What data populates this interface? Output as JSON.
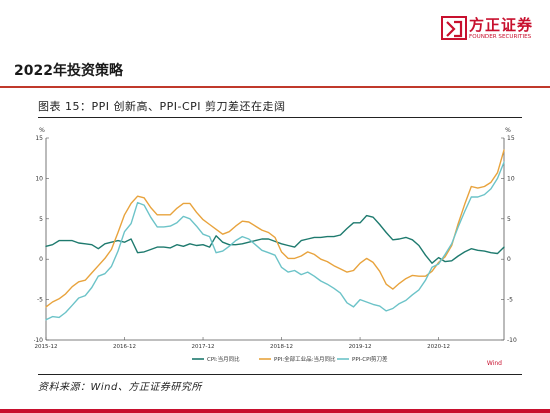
{
  "header": {
    "brand_name": "方正证券",
    "brand_sub": "FOUNDER SECURITIES",
    "section_title": "2022年投资策略"
  },
  "figure": {
    "caption": "图表 15：PPI 创新高、PPI-CPI 剪刀差还在走阔",
    "source": "资料来源：Wind、方正证券研究所"
  },
  "colors": {
    "brand": "#c8102e",
    "cpi": "#1e7a6e",
    "ppi": "#e8a33d",
    "spread": "#6cc3c8"
  },
  "chart_data": {
    "type": "line",
    "x": [
      "2015-12",
      "2016-01",
      "2016-02",
      "2016-03",
      "2016-04",
      "2016-05",
      "2016-06",
      "2016-07",
      "2016-08",
      "2016-09",
      "2016-10",
      "2016-11",
      "2016-12",
      "2017-01",
      "2017-02",
      "2017-03",
      "2017-04",
      "2017-05",
      "2017-06",
      "2017-07",
      "2017-08",
      "2017-09",
      "2017-10",
      "2017-11",
      "2017-12",
      "2018-01",
      "2018-02",
      "2018-03",
      "2018-04",
      "2018-05",
      "2018-06",
      "2018-07",
      "2018-08",
      "2018-09",
      "2018-10",
      "2018-11",
      "2018-12",
      "2019-01",
      "2019-02",
      "2019-03",
      "2019-04",
      "2019-05",
      "2019-06",
      "2019-07",
      "2019-08",
      "2019-09",
      "2019-10",
      "2019-11",
      "2019-12",
      "2020-01",
      "2020-02",
      "2020-03",
      "2020-04",
      "2020-05",
      "2020-06",
      "2020-07",
      "2020-08",
      "2020-09",
      "2020-10",
      "2020-11",
      "2020-12",
      "2021-01",
      "2021-02",
      "2021-03",
      "2021-04",
      "2021-05",
      "2021-06",
      "2021-07",
      "2021-08",
      "2021-09",
      "2021-10"
    ],
    "x_tick_labels": [
      "2015-12",
      "2016-12",
      "2017-12",
      "2018-12",
      "2019-12",
      "2020-12"
    ],
    "series": [
      {
        "name": "CPI:当月同比",
        "values": [
          1.6,
          1.8,
          2.3,
          2.3,
          2.3,
          2.0,
          1.9,
          1.8,
          1.3,
          1.9,
          2.1,
          2.3,
          2.1,
          2.5,
          0.8,
          0.9,
          1.2,
          1.5,
          1.5,
          1.4,
          1.8,
          1.6,
          1.9,
          1.7,
          1.8,
          1.5,
          2.9,
          2.1,
          1.8,
          1.8,
          1.9,
          2.1,
          2.3,
          2.5,
          2.5,
          2.2,
          1.9,
          1.7,
          1.5,
          2.3,
          2.5,
          2.7,
          2.7,
          2.8,
          2.8,
          3.0,
          3.8,
          4.5,
          4.5,
          5.4,
          5.2,
          4.3,
          3.3,
          2.4,
          2.5,
          2.7,
          2.4,
          1.7,
          0.5,
          -0.5,
          0.2,
          -0.3,
          -0.2,
          0.4,
          0.9,
          1.3,
          1.1,
          1.0,
          0.8,
          0.7,
          1.5
        ]
      },
      {
        "name": "PPI:全部工业品:当月同比",
        "values": [
          -5.9,
          -5.3,
          -4.9,
          -4.3,
          -3.4,
          -2.8,
          -2.6,
          -1.7,
          -0.8,
          0.1,
          1.2,
          3.3,
          5.5,
          6.9,
          7.8,
          7.6,
          6.4,
          5.5,
          5.5,
          5.5,
          6.3,
          6.9,
          6.9,
          5.8,
          4.9,
          4.3,
          3.7,
          3.1,
          3.4,
          4.1,
          4.7,
          4.6,
          4.1,
          3.6,
          3.3,
          2.7,
          0.9,
          0.1,
          0.1,
          0.4,
          0.9,
          0.6,
          0.0,
          -0.3,
          -0.8,
          -1.2,
          -1.6,
          -1.4,
          -0.5,
          0.1,
          -0.4,
          -1.5,
          -3.1,
          -3.7,
          -3.0,
          -2.4,
          -2.0,
          -2.1,
          -2.1,
          -1.5,
          -0.4,
          0.3,
          1.7,
          4.4,
          6.8,
          9.0,
          8.8,
          9.0,
          9.5,
          10.7,
          13.5
        ]
      },
      {
        "name": "PPI-CPI剪刀差",
        "values": [
          -7.5,
          -7.1,
          -7.2,
          -6.6,
          -5.7,
          -4.8,
          -4.5,
          -3.5,
          -2.1,
          -1.8,
          -0.9,
          1.0,
          3.4,
          4.4,
          7.0,
          6.7,
          5.2,
          4.0,
          4.0,
          4.1,
          4.5,
          5.3,
          5.0,
          4.1,
          3.1,
          2.8,
          0.8,
          1.0,
          1.6,
          2.3,
          2.8,
          2.5,
          1.8,
          1.1,
          0.8,
          0.5,
          -1.0,
          -1.6,
          -1.4,
          -1.9,
          -1.6,
          -2.1,
          -2.7,
          -3.1,
          -3.6,
          -4.2,
          -5.4,
          -5.9,
          -5.0,
          -5.3,
          -5.6,
          -5.8,
          -6.4,
          -6.1,
          -5.5,
          -5.1,
          -4.4,
          -3.8,
          -2.6,
          -1.0,
          -0.6,
          0.6,
          1.9,
          4.0,
          5.9,
          7.7,
          7.7,
          8.0,
          8.7,
          10.0,
          12.0
        ]
      }
    ],
    "y_left_ticks": [
      "15",
      "10",
      "5",
      "0",
      "-5",
      "-10"
    ],
    "y_right_ticks": [
      "15",
      "10",
      "5",
      "0",
      "-5",
      "-10"
    ],
    "y_unit_left": "%",
    "y_unit_right": "%",
    "ylim": [
      -10,
      15
    ],
    "grid": false,
    "legend_position": "bottom",
    "watermark": "Wind"
  }
}
